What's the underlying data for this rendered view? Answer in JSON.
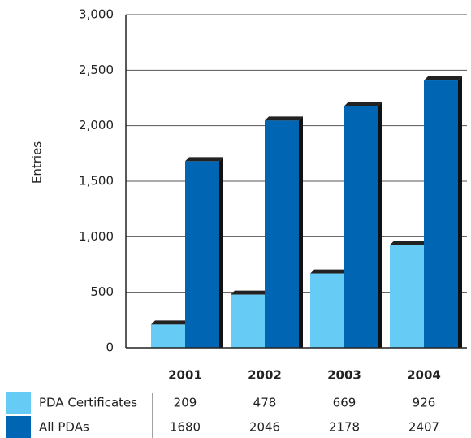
{
  "chart_data": {
    "type": "bar",
    "y_label": "Entries",
    "categories": [
      "2001",
      "2002",
      "2003",
      "2004"
    ],
    "series": [
      {
        "name": "PDA Certificates",
        "color": "#66ccf5",
        "values": [
          209,
          478,
          669,
          926
        ]
      },
      {
        "name": "All PDAs",
        "color": "#0066b3",
        "values": [
          1680,
          2046,
          2178,
          2407
        ]
      }
    ],
    "ylim": [
      0,
      3000
    ],
    "yticks": [
      0,
      500,
      {
        "value": 1000,
        "label": "1,000"
      },
      {
        "value": 1500,
        "label": "1,500"
      },
      {
        "value": 2000,
        "label": "2,000"
      },
      {
        "value": 2500,
        "label": "2,500"
      },
      {
        "value": 3000,
        "label": "3,000"
      }
    ],
    "grid": true
  }
}
